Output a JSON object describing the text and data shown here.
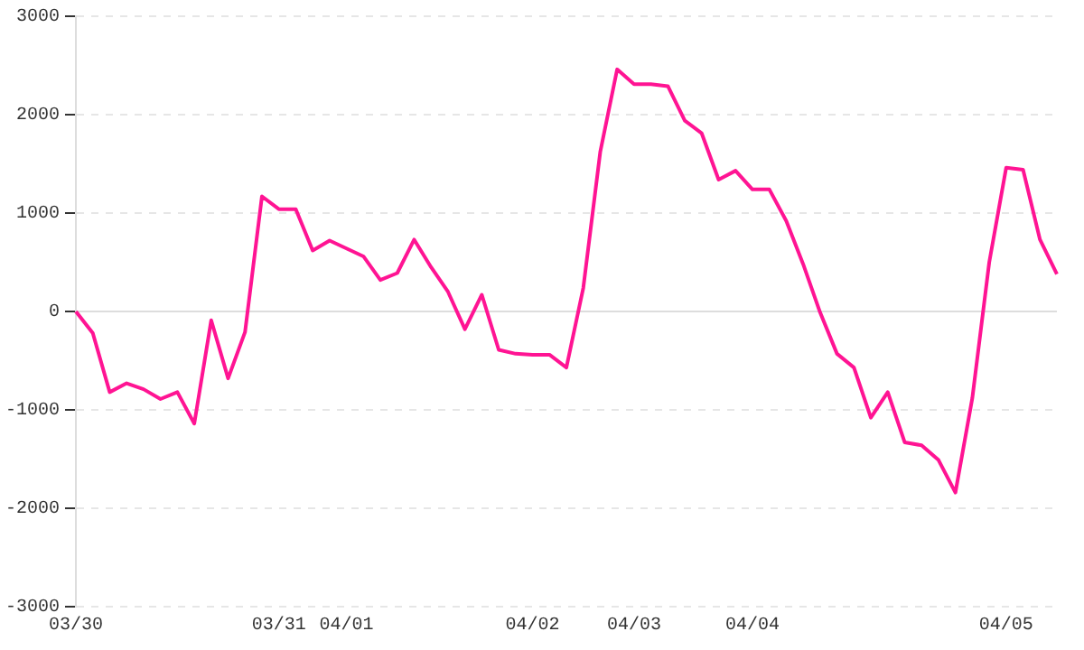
{
  "chart_data": {
    "type": "line",
    "categories": [
      "03/30",
      null,
      null,
      null,
      null,
      null,
      null,
      null,
      null,
      null,
      null,
      null,
      "03/31",
      null,
      null,
      null,
      "04/01",
      null,
      null,
      null,
      null,
      null,
      null,
      null,
      null,
      null,
      null,
      "04/02",
      null,
      null,
      null,
      null,
      null,
      "04/03",
      null,
      null,
      null,
      null,
      null,
      null,
      "04/04",
      null,
      null,
      null,
      null,
      null,
      null,
      null,
      null,
      null,
      null,
      null,
      null,
      null,
      null,
      "04/05",
      null,
      null,
      null
    ],
    "series": [
      {
        "color": "#ff1493",
        "values": [
          0,
          -220,
          -820,
          -730,
          -790,
          -890,
          -820,
          -1140,
          -90,
          -680,
          -210,
          1170,
          1040,
          1040,
          620,
          720,
          640,
          560,
          320,
          390,
          730,
          450,
          200,
          -180,
          170,
          -390,
          -430,
          -440,
          -440,
          -570,
          240,
          1620,
          2460,
          2310,
          2310,
          2290,
          1940,
          1810,
          1340,
          1430,
          1240,
          1240,
          920,
          480,
          -10,
          -430,
          -570,
          -1080,
          -820,
          -1330,
          -1360,
          -1510,
          -1840,
          -880,
          500,
          1460,
          1440,
          730,
          380
        ]
      }
    ],
    "ylim": [
      -3000,
      3000
    ],
    "yticks": [
      -3000,
      -2000,
      -1000,
      0,
      1000,
      2000,
      3000
    ],
    "ref_lines": [
      {
        "axis": "y",
        "value": 0,
        "color": "#dddddd",
        "line_style": "solid"
      }
    ],
    "grid": "y",
    "legend": false,
    "marker": "none",
    "line_style": "solid"
  }
}
